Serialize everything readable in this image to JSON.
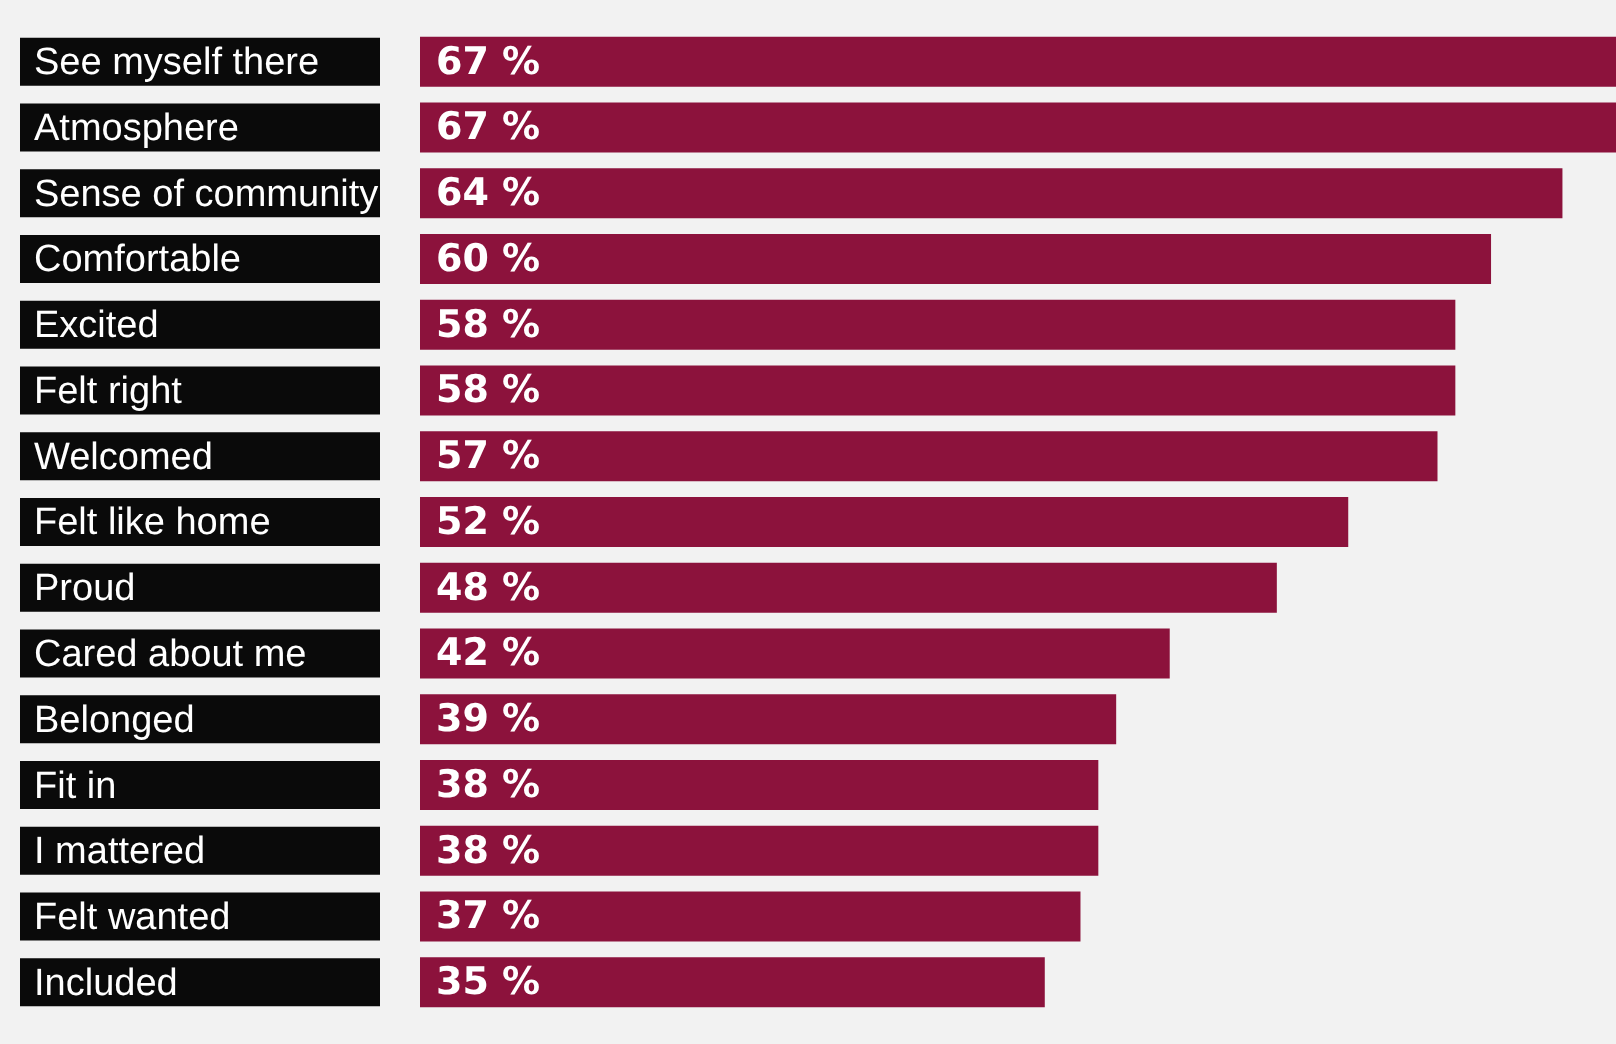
{
  "chart_data": {
    "type": "bar",
    "orientation": "horizontal",
    "categories": [
      "See myself there",
      "Atmosphere",
      "Sense of community",
      "Comfortable",
      "Excited",
      "Felt right",
      "Welcomed",
      "Felt like home",
      "Proud",
      "Cared about me",
      "Belonged",
      "Fit in",
      "I mattered",
      "Felt wanted",
      "Included"
    ],
    "values": [
      67,
      67,
      64,
      60,
      58,
      58,
      57,
      52,
      48,
      42,
      39,
      38,
      38,
      37,
      35
    ],
    "value_labels": [
      "67 %",
      "67 %",
      "64 %",
      "60 %",
      "58 %",
      "58 %",
      "57 %",
      "52 %",
      "48 %",
      "42 %",
      "39 %",
      "38 %",
      "38 %",
      "37 %",
      "35 %"
    ],
    "color": "#8c123c",
    "xlim": [
      0,
      67
    ],
    "tick_labels": "y",
    "legend": false
  }
}
